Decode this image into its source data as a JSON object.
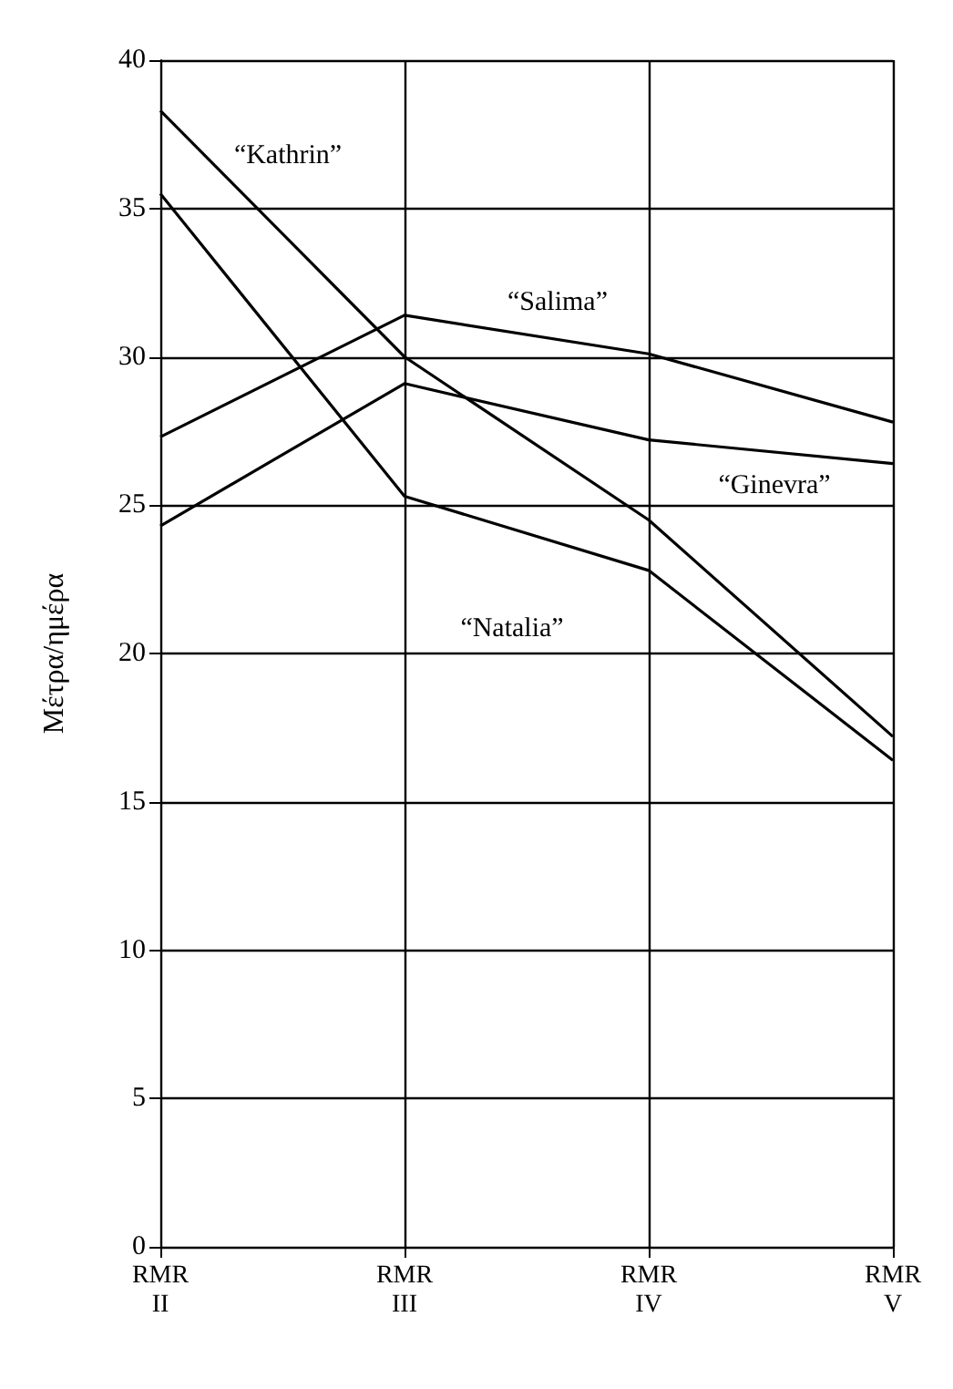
{
  "chart_data": {
    "type": "line",
    "ylabel": "Μέτρα/ημέρα",
    "categories": [
      "RMR\nII",
      "RMR\nIII",
      "RMR\nIV",
      "RMR\nV"
    ],
    "series": [
      {
        "name": "“Kathrin”",
        "color": "#000000",
        "values": [
          38.3,
          30.0,
          24.5,
          17.2
        ]
      },
      {
        "name": "“Salima”",
        "color": "#000000",
        "values": [
          27.3,
          31.4,
          30.1,
          27.8
        ]
      },
      {
        "name": "“Ginevra”",
        "color": "#000000",
        "values": [
          24.3,
          29.1,
          27.2,
          26.4
        ]
      },
      {
        "name": "“Natalia”",
        "color": "#000000",
        "values": [
          35.5,
          25.3,
          22.8,
          16.4
        ]
      }
    ],
    "ylim": [
      0,
      40
    ],
    "yticks": [
      0,
      5,
      10,
      15,
      20,
      25,
      30,
      35,
      40
    ],
    "grid": true,
    "legend": false,
    "marker": "none",
    "line_style": "solid"
  }
}
